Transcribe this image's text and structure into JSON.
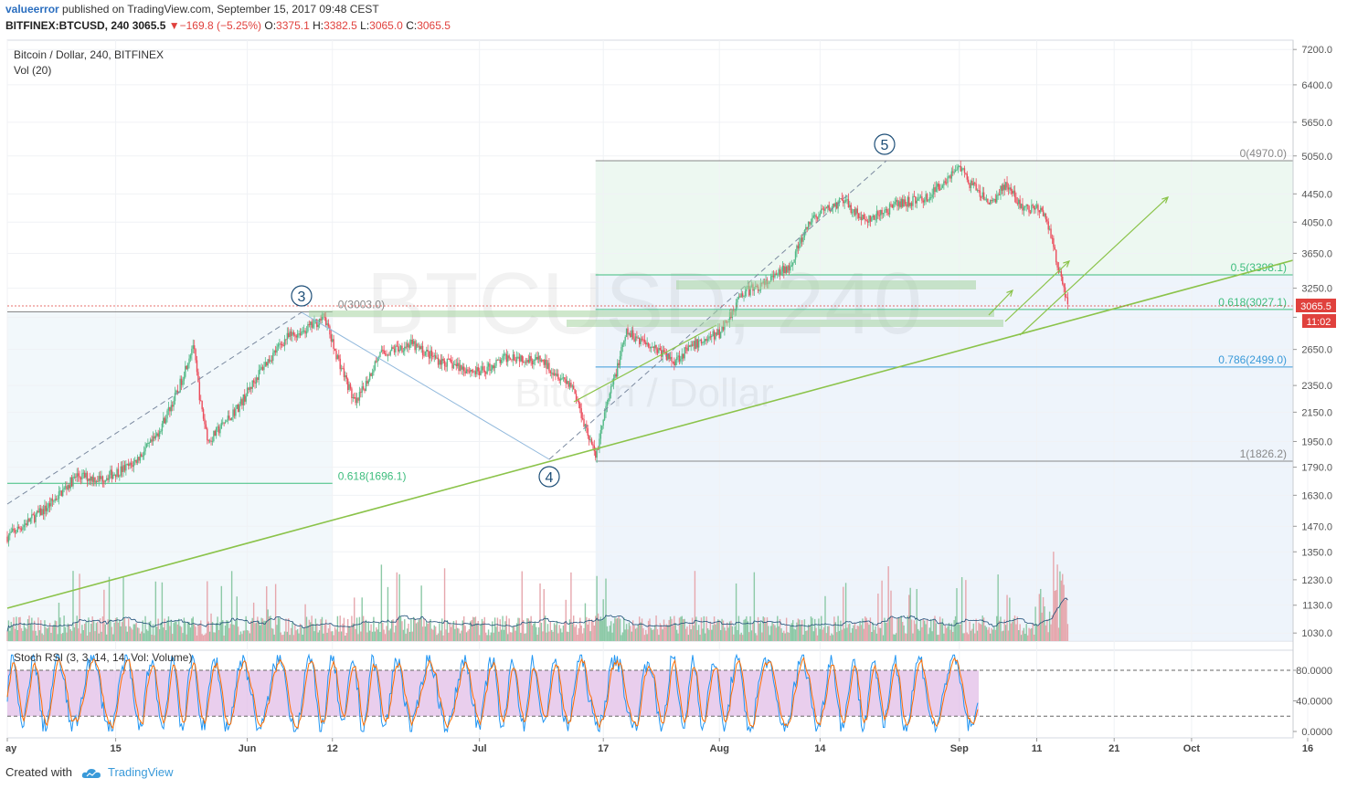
{
  "header": {
    "user": "valueerror",
    "published": "published on TradingView.com, September 15, 2017 09:48 CEST",
    "symbol": "BITFINEX:BTCUSD, 240",
    "last": "3065.5",
    "change": "▼−169.8 (−5.25%)",
    "o_label": "O:",
    "o_value": "3375.1",
    "h_label": "H:",
    "h_value": "3382.5",
    "l_label": "L:",
    "l_value": "3065.0",
    "c_label": "C:",
    "c_value": "3065.5"
  },
  "legend": {
    "title": "Bitcoin / Dollar, 240, BITFINEX",
    "volume": "Vol (20)"
  },
  "watermark": {
    "symbol": "BTCUSD, 240",
    "name": "Bitcoin / Dollar"
  },
  "footer": {
    "created": "Created with",
    "brand": "TradingView"
  },
  "colors": {
    "up": "#53b987",
    "down": "#eb4d5c",
    "vol_up": "#8cc9a6",
    "vol_down": "#e6a7ad",
    "fib": "#3dbd7d",
    "fib_blue": "#3a9ad9",
    "trend": "#8bc34a",
    "wave": "#1e4f78",
    "rsi_k": "#2196f3",
    "rsi_d": "#ff6d00",
    "rsi_band": "#e1bee7",
    "price_tag": "#e0413d"
  },
  "chart_data": {
    "type": "candlestick",
    "title": "Bitcoin / Dollar, 240, BITFINEX",
    "scale": "log",
    "y_ticks": [
      7200,
      6400,
      5650,
      5050,
      4450,
      4050,
      3650,
      3250,
      2950,
      2650,
      2350,
      2150,
      1950,
      1790,
      1630,
      1470,
      1350,
      1230,
      1130,
      1030
    ],
    "y_tick_labels": [
      "7200.0",
      "6400.0",
      "5650.0",
      "5050.0",
      "4450.0",
      "4050.0",
      "3650.0",
      "3250.0",
      "2950.0",
      "2650.0",
      "2350.0",
      "2150.0",
      "1950.0",
      "1790.0",
      "1630.0",
      "1470.0",
      "1350.0",
      "1230.0",
      "1130.0",
      "1030.0"
    ],
    "x_ticks": [
      "ay",
      "15",
      "Jun",
      "12",
      "Jul",
      "17",
      "Aug",
      "14",
      "Sep",
      "11",
      "21",
      "Oct",
      "16"
    ],
    "x_tick_dates": [
      "2017-05-01",
      "2017-05-15",
      "2017-06-01",
      "2017-06-12",
      "2017-07-01",
      "2017-07-17",
      "2017-08-01",
      "2017-08-14",
      "2017-09-01",
      "2017-09-11",
      "2017-09-21",
      "2017-10-01",
      "2017-10-16"
    ],
    "price_path": [
      [
        "2017-05-01",
        1420
      ],
      [
        "2017-05-06",
        1560
      ],
      [
        "2017-05-10",
        1740
      ],
      [
        "2017-05-13",
        1720
      ],
      [
        "2017-05-17",
        1800
      ],
      [
        "2017-05-20",
        1960
      ],
      [
        "2017-05-23",
        2300
      ],
      [
        "2017-05-25",
        2700
      ],
      [
        "2017-05-26",
        2200
      ],
      [
        "2017-05-27",
        1950
      ],
      [
        "2017-05-31",
        2200
      ],
      [
        "2017-06-03",
        2500
      ],
      [
        "2017-06-06",
        2750
      ],
      [
        "2017-06-09",
        2850
      ],
      [
        "2017-06-11",
        2960
      ],
      [
        "2017-06-12",
        2700
      ],
      [
        "2017-06-15",
        2200
      ],
      [
        "2017-06-18",
        2600
      ],
      [
        "2017-06-22",
        2700
      ],
      [
        "2017-06-26",
        2550
      ],
      [
        "2017-07-01",
        2450
      ],
      [
        "2017-07-05",
        2600
      ],
      [
        "2017-07-09",
        2550
      ],
      [
        "2017-07-13",
        2350
      ],
      [
        "2017-07-16",
        1850
      ],
      [
        "2017-07-17",
        2100
      ],
      [
        "2017-07-20",
        2800
      ],
      [
        "2017-07-23",
        2700
      ],
      [
        "2017-07-26",
        2550
      ],
      [
        "2017-07-29",
        2700
      ],
      [
        "2017-08-01",
        2800
      ],
      [
        "2017-08-04",
        3200
      ],
      [
        "2017-08-07",
        3300
      ],
      [
        "2017-08-10",
        3500
      ],
      [
        "2017-08-13",
        4100
      ],
      [
        "2017-08-17",
        4350
      ],
      [
        "2017-08-20",
        4050
      ],
      [
        "2017-08-24",
        4300
      ],
      [
        "2017-08-28",
        4400
      ],
      [
        "2017-09-01",
        4900
      ],
      [
        "2017-09-02",
        4650
      ],
      [
        "2017-09-05",
        4300
      ],
      [
        "2017-09-07",
        4600
      ],
      [
        "2017-09-09",
        4250
      ],
      [
        "2017-09-12",
        4200
      ],
      [
        "2017-09-14",
        3400
      ],
      [
        "2017-09-15",
        3065.5
      ]
    ],
    "fib_levels_left": [
      {
        "label": "0(3003.0)",
        "value": 3003.0
      },
      {
        "label": "0.618(1696.1)",
        "value": 1696.1
      }
    ],
    "fib_levels_right": [
      {
        "label": "0(4970.0)",
        "value": 4970.0
      },
      {
        "label": "0.5(3398.1)",
        "value": 3398.1
      },
      {
        "label": "0.618(3027.1)",
        "value": 3027.1
      },
      {
        "label": "0.786(2499.0)",
        "value": 2499.0
      },
      {
        "label": "1(1826.2)",
        "value": 1826.2
      }
    ],
    "elliott_waves": [
      {
        "label": "3",
        "date": "2017-06-12",
        "value": 3003
      },
      {
        "label": "4",
        "date": "2017-07-16",
        "value": 1826
      },
      {
        "label": "5",
        "date": "2017-09-01",
        "value": 4970
      }
    ],
    "last_price": {
      "label": "3065.5",
      "value": 3065.5,
      "timer": "11:02"
    },
    "volume_panel": {
      "label": "Vol (20)"
    },
    "stoch_rsi": {
      "label": "Stoch RSI (3, 3, 14, 14, Vol: Volume)",
      "y_ticks": [
        "80.0000",
        "40.0000",
        "0.0000"
      ],
      "upper": 80,
      "lower": 20
    }
  }
}
